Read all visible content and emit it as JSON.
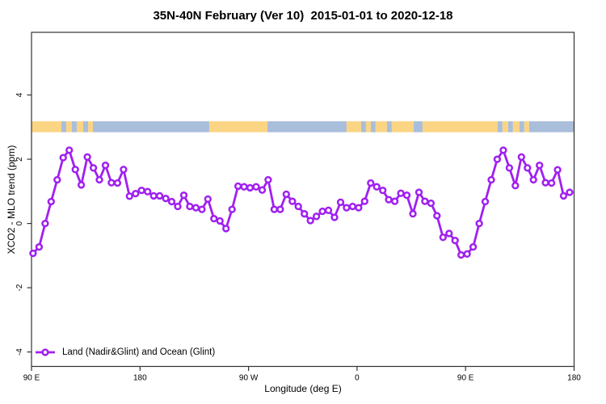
{
  "title": "35N-40N February (Ver 10)  2015-01-01 to 2020-12-18",
  "chart_data": {
    "type": "line",
    "title": "35N-40N February (Ver 10)  2015-01-01 to 2020-12-18",
    "xlabel": "Longitude (deg E)",
    "ylabel": "XCO2 - MLO trend (ppm)",
    "x_domain": [
      90,
      540
    ],
    "y_domain": [
      -4.45,
      5.95
    ],
    "x_ticks": [
      {
        "deg": 90,
        "label": "90 E"
      },
      {
        "deg": 180,
        "label": "180"
      },
      {
        "deg": 270,
        "label": "90 W"
      },
      {
        "deg": 360,
        "label": "0"
      },
      {
        "deg": 450,
        "label": "90 E"
      },
      {
        "deg": 540,
        "label": "180"
      }
    ],
    "y_ticks": [
      {
        "value": 4,
        "label": "4"
      },
      {
        "value": 2,
        "label": "2"
      },
      {
        "value": 0,
        "label": "0"
      },
      {
        "value": -2,
        "label": "-2"
      },
      {
        "value": -4,
        "label": "-4"
      }
    ],
    "grid": false,
    "legend_position": "bottom-left",
    "axis_color": "#333333",
    "series": [
      {
        "name": "Land (Nadir&Glint) and Ocean (Glint)",
        "color": "#A020F0",
        "marker": "open-circle",
        "x_start_deg": 91.3,
        "x_step_deg": 5,
        "values": [
          -0.93,
          -0.73,
          0.0,
          0.68,
          1.36,
          2.05,
          2.28,
          1.68,
          1.2,
          2.07,
          1.73,
          1.36,
          1.81,
          1.27,
          1.26,
          1.68,
          0.85,
          0.93,
          1.03,
          0.99,
          0.86,
          0.86,
          0.78,
          0.68,
          0.53,
          0.88,
          0.53,
          0.49,
          0.44,
          0.76,
          0.15,
          0.08,
          -0.16,
          0.44,
          1.16,
          1.14,
          1.11,
          1.14,
          1.04,
          1.36,
          0.44,
          0.44,
          0.91,
          0.69,
          0.53,
          0.3,
          0.09,
          0.22,
          0.38,
          0.41,
          0.19,
          0.66,
          0.49,
          0.53,
          0.49,
          0.69,
          1.26,
          1.14,
          1.03,
          0.74,
          0.69,
          0.94,
          0.88,
          0.3,
          0.97,
          0.69,
          0.63,
          0.24,
          -0.43,
          -0.31,
          -0.53,
          -0.98,
          -0.95,
          -0.73,
          0.0,
          0.68,
          1.36,
          2.0,
          2.28,
          1.73,
          1.18,
          2.07,
          1.73,
          1.36,
          1.81,
          1.27,
          1.26,
          1.67,
          0.86,
          0.97
        ]
      }
    ],
    "map_strip": {
      "description": "land/ocean band for 35N-40N latitude strip",
      "value_range": [
        2.84,
        3.18
      ],
      "land_color": "#FBD584",
      "ocean_color": "#A9BEDB",
      "segments": [
        {
          "from_deg": 90.0,
          "to_deg": 114.8,
          "type": "land"
        },
        {
          "from_deg": 114.8,
          "to_deg": 118.8,
          "type": "ocean"
        },
        {
          "from_deg": 118.8,
          "to_deg": 123.5,
          "type": "land"
        },
        {
          "from_deg": 123.5,
          "to_deg": 127.5,
          "type": "ocean"
        },
        {
          "from_deg": 127.5,
          "to_deg": 132.9,
          "type": "land"
        },
        {
          "from_deg": 132.9,
          "to_deg": 136.9,
          "type": "ocean"
        },
        {
          "from_deg": 136.9,
          "to_deg": 140.9,
          "type": "land"
        },
        {
          "from_deg": 140.9,
          "to_deg": 237.4,
          "type": "ocean"
        },
        {
          "from_deg": 237.4,
          "to_deg": 285.7,
          "type": "land"
        },
        {
          "from_deg": 285.7,
          "to_deg": 351.3,
          "type": "ocean"
        },
        {
          "from_deg": 351.3,
          "to_deg": 363.4,
          "type": "land"
        },
        {
          "from_deg": 363.4,
          "to_deg": 367.4,
          "type": "ocean"
        },
        {
          "from_deg": 367.4,
          "to_deg": 371.4,
          "type": "land"
        },
        {
          "from_deg": 371.4,
          "to_deg": 375.4,
          "type": "ocean"
        },
        {
          "from_deg": 375.4,
          "to_deg": 384.8,
          "type": "land"
        },
        {
          "from_deg": 384.8,
          "to_deg": 388.8,
          "type": "ocean"
        },
        {
          "from_deg": 388.8,
          "to_deg": 406.9,
          "type": "land"
        },
        {
          "from_deg": 406.9,
          "to_deg": 414.3,
          "type": "ocean"
        },
        {
          "from_deg": 414.3,
          "to_deg": 476.6,
          "type": "land"
        },
        {
          "from_deg": 476.6,
          "to_deg": 480.6,
          "type": "ocean"
        },
        {
          "from_deg": 480.6,
          "to_deg": 485.3,
          "type": "land"
        },
        {
          "from_deg": 485.3,
          "to_deg": 489.3,
          "type": "ocean"
        },
        {
          "from_deg": 489.3,
          "to_deg": 494.7,
          "type": "land"
        },
        {
          "from_deg": 494.7,
          "to_deg": 498.7,
          "type": "ocean"
        },
        {
          "from_deg": 498.7,
          "to_deg": 502.7,
          "type": "land"
        },
        {
          "from_deg": 502.7,
          "to_deg": 540.0,
          "type": "ocean"
        }
      ]
    }
  },
  "legend": {
    "label": "Land (Nadir&Glint) and Ocean (Glint)"
  }
}
